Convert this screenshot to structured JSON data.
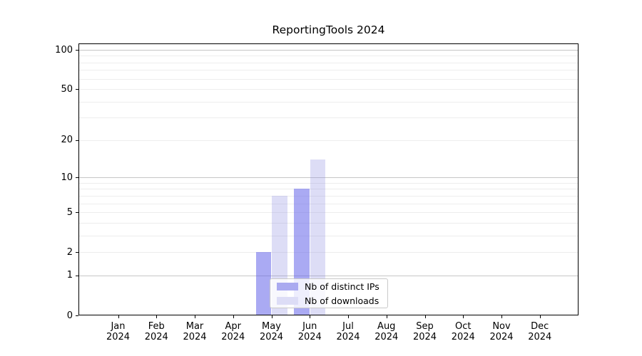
{
  "title": "ReportingTools 2024",
  "chart_data": {
    "type": "bar",
    "title": "ReportingTools 2024",
    "categories": [
      "Jan",
      "Feb",
      "Mar",
      "Apr",
      "May",
      "Jun",
      "Jul",
      "Aug",
      "Sep",
      "Oct",
      "Nov",
      "Dec"
    ],
    "year": "2024",
    "series": [
      {
        "name": "Nb of distinct IPs",
        "bar_color": "rgba(100,100,233,0.55)",
        "swatch_color": "#aaaaf0",
        "values": [
          0,
          0,
          0,
          0,
          2,
          8,
          0,
          0,
          0,
          0,
          0,
          0
        ]
      },
      {
        "name": "Nb of downloads",
        "bar_color": "rgba(142,142,225,0.30)",
        "swatch_color": "#ddddf6",
        "values": [
          0,
          0,
          0,
          0,
          7,
          14,
          0,
          0,
          0,
          0,
          0,
          0
        ]
      }
    ],
    "xlabel": "",
    "ylabel": "",
    "y_axis": {
      "scale": "log1p",
      "ylim": [
        0,
        100
      ],
      "tick_values": [
        0,
        1,
        2,
        5,
        10,
        20,
        50,
        100
      ],
      "tick_labels": [
        "0",
        "1",
        "2",
        "5",
        "10",
        "20",
        "50",
        "100"
      ],
      "major_gridline_values": [
        1,
        10,
        100
      ],
      "minor_gridline_values": [
        2,
        3,
        4,
        5,
        6,
        7,
        8,
        9,
        20,
        30,
        40,
        50,
        60,
        70,
        80,
        90
      ]
    },
    "grid": true,
    "legend_position": "lower center inside plot"
  },
  "colors": {
    "major_grid": "#c6c6c6",
    "minor_grid": "#ededed",
    "axis": "#000000",
    "background": "#ffffff"
  }
}
